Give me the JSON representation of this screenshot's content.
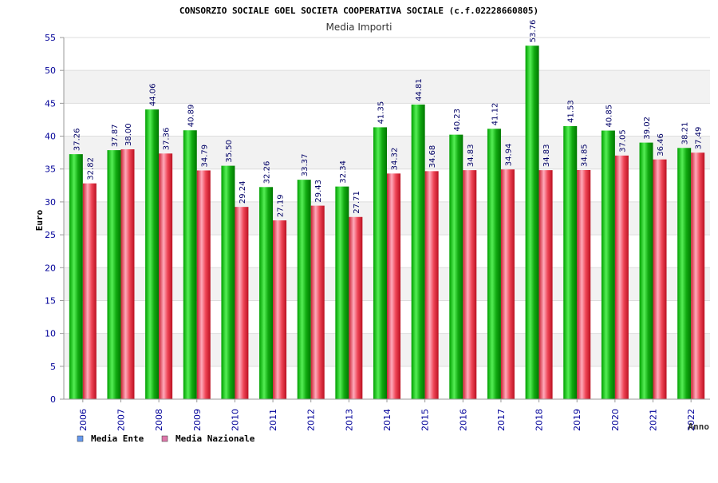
{
  "title": "CONSORZIO SOCIALE GOEL SOCIETA COOPERATIVA SOCIALE (c.f.02228660805)",
  "subtitle": "Media Importi",
  "colors": {
    "ente": "#22bb22",
    "nazionale": "#ee5566",
    "ente_legend": "#6699ee",
    "nazionale_legend": "#dd77aa",
    "axis_text": "#000099",
    "label_text": "#000066",
    "band": "#f2f2f2"
  },
  "chart_data": {
    "type": "bar",
    "xlabel": "Anno",
    "ylabel": "Euro",
    "ylim": [
      0,
      55
    ],
    "yticks": [
      0,
      5,
      10,
      15,
      20,
      25,
      30,
      35,
      40,
      45,
      50,
      55
    ],
    "categories": [
      "2006",
      "2007",
      "2008",
      "2009",
      "2010",
      "2011",
      "2012",
      "2013",
      "2014",
      "2015",
      "2016",
      "2017",
      "2018",
      "2019",
      "2020",
      "2021",
      "2022"
    ],
    "series": [
      {
        "name": "Media Ente",
        "values": [
          37.26,
          37.87,
          44.06,
          40.89,
          35.5,
          32.26,
          33.37,
          32.34,
          41.35,
          44.81,
          40.23,
          41.12,
          53.76,
          41.53,
          40.85,
          39.02,
          38.21
        ]
      },
      {
        "name": "Media Nazionale",
        "values": [
          32.82,
          38.0,
          37.36,
          34.79,
          29.24,
          27.19,
          29.43,
          27.71,
          34.32,
          34.68,
          34.83,
          34.94,
          34.83,
          34.85,
          37.05,
          36.46,
          37.49
        ]
      }
    ],
    "value_labels": [
      [
        "37.26",
        "37.87",
        "44.06",
        "40.89",
        "35.50",
        "32.26",
        "33.37",
        "32.34",
        "41.35",
        "44.81",
        "40.23",
        "41.12",
        "53.76",
        "41.53",
        "40.85",
        "39.02",
        "38.21"
      ],
      [
        "32.82",
        "38.00",
        "37.36",
        "34.79",
        "29.24",
        "27.19",
        "29.43",
        "27.71",
        "34.32",
        "34.68",
        "34.83",
        "34.94",
        "34.83",
        "34.85",
        "37.05",
        "36.46",
        "37.49"
      ]
    ],
    "grid": true,
    "legend_position": "bottom-left"
  }
}
